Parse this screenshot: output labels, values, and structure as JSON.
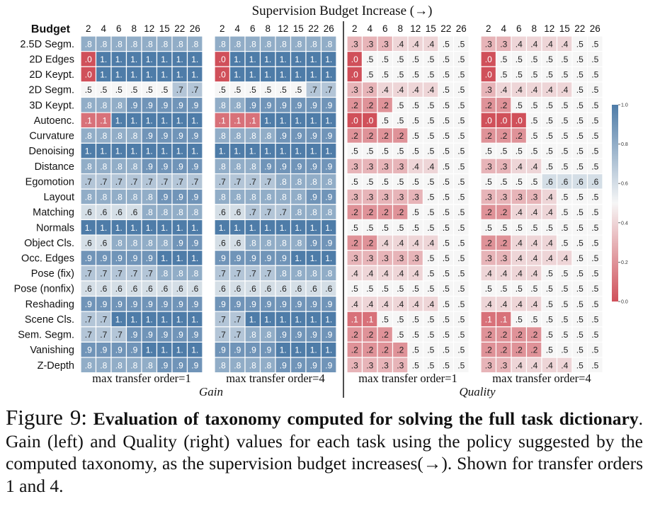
{
  "chart_data": {
    "type": "heatmap",
    "title": "Supervision Budget Increase (→)",
    "row_header": "Budget",
    "rows": [
      "2.5D Segm.",
      "2D Edges",
      "2D Keypt.",
      "2D Segm.",
      "3D Keypt.",
      "Autoenc.",
      "Curvature",
      "Denoising",
      "Distance",
      "Egomotion",
      "Layout",
      "Matching",
      "Normals",
      "Object Cls.",
      "Occ. Edges",
      "Pose (fix)",
      "Pose (nonfix)",
      "Reshading",
      "Scene Cls.",
      "Sem. Segm.",
      "Vanishing",
      "Z-Depth"
    ],
    "budgets": [
      "2",
      "4",
      "6",
      "8",
      "12",
      "15",
      "22",
      "26"
    ],
    "colorbar": {
      "min": 0.0,
      "max": 1.0,
      "ticks": [
        "1.0",
        "0.8",
        "0.6",
        "0.4",
        "0.2",
        "0.0"
      ],
      "low_color": "#d0505a",
      "mid_color": "#f6f6f6",
      "high_color": "#4e7ca8"
    },
    "groups": [
      {
        "name": "Gain",
        "panels": [
          "max transfer order=1",
          "max transfer order=4"
        ]
      },
      {
        "name": "Quality",
        "panels": [
          "max transfer order=1",
          "max transfer order=4"
        ]
      }
    ],
    "panels": [
      {
        "group": "Gain",
        "label": "max transfer order=1",
        "values": [
          [
            0.8,
            0.8,
            0.8,
            0.8,
            0.8,
            0.8,
            0.8,
            0.8
          ],
          [
            0.0,
            1.0,
            1.0,
            1.0,
            1.0,
            1.0,
            1.0,
            1.0
          ],
          [
            0.0,
            1.0,
            1.0,
            1.0,
            1.0,
            1.0,
            1.0,
            1.0
          ],
          [
            0.5,
            0.5,
            0.5,
            0.5,
            0.5,
            0.5,
            0.7,
            0.7
          ],
          [
            0.8,
            0.8,
            0.8,
            0.9,
            0.9,
            0.9,
            0.9,
            0.9
          ],
          [
            0.1,
            0.1,
            1.0,
            1.0,
            1.0,
            1.0,
            1.0,
            1.0
          ],
          [
            0.8,
            0.8,
            0.8,
            0.8,
            0.9,
            0.9,
            0.9,
            0.9
          ],
          [
            1.0,
            1.0,
            1.0,
            1.0,
            1.0,
            1.0,
            1.0,
            1.0
          ],
          [
            0.8,
            0.8,
            0.8,
            0.8,
            0.9,
            0.9,
            0.9,
            0.9
          ],
          [
            0.7,
            0.7,
            0.7,
            0.7,
            0.7,
            0.7,
            0.7,
            0.7
          ],
          [
            0.8,
            0.8,
            0.8,
            0.8,
            0.8,
            0.9,
            0.9,
            0.9
          ],
          [
            0.6,
            0.6,
            0.6,
            0.6,
            0.8,
            0.8,
            0.8,
            0.8
          ],
          [
            1.0,
            1.0,
            1.0,
            1.0,
            1.0,
            1.0,
            1.0,
            1.0
          ],
          [
            0.6,
            0.6,
            0.8,
            0.8,
            0.8,
            0.8,
            0.9,
            0.9
          ],
          [
            0.9,
            0.9,
            0.9,
            0.9,
            0.9,
            1.0,
            1.0,
            1.0
          ],
          [
            0.7,
            0.7,
            0.7,
            0.7,
            0.7,
            0.8,
            0.8,
            0.8
          ],
          [
            0.6,
            0.6,
            0.6,
            0.6,
            0.6,
            0.6,
            0.6,
            0.6
          ],
          [
            0.9,
            0.9,
            0.9,
            0.9,
            0.9,
            0.9,
            0.9,
            0.9
          ],
          [
            0.7,
            0.7,
            1.0,
            1.0,
            1.0,
            1.0,
            1.0,
            1.0
          ],
          [
            0.7,
            0.7,
            0.7,
            0.9,
            0.9,
            0.9,
            0.9,
            0.9
          ],
          [
            0.9,
            0.9,
            0.9,
            0.9,
            1.0,
            1.0,
            1.0,
            1.0
          ],
          [
            0.8,
            0.8,
            0.8,
            0.8,
            0.8,
            0.9,
            0.9,
            0.9
          ]
        ]
      },
      {
        "group": "Gain",
        "label": "max transfer order=4",
        "values": [
          [
            0.8,
            0.8,
            0.8,
            0.8,
            0.8,
            0.8,
            0.8,
            0.8
          ],
          [
            0.0,
            1.0,
            1.0,
            1.0,
            1.0,
            1.0,
            1.0,
            1.0
          ],
          [
            0.0,
            1.0,
            1.0,
            1.0,
            1.0,
            1.0,
            1.0,
            1.0
          ],
          [
            0.5,
            0.5,
            0.5,
            0.5,
            0.5,
            0.5,
            0.7,
            0.7
          ],
          [
            0.8,
            0.8,
            0.9,
            0.9,
            0.9,
            0.9,
            0.9,
            0.9
          ],
          [
            0.1,
            0.1,
            0.1,
            1.0,
            1.0,
            1.0,
            1.0,
            1.0
          ],
          [
            0.8,
            0.8,
            0.8,
            0.8,
            0.9,
            0.9,
            0.9,
            0.9
          ],
          [
            1.0,
            1.0,
            1.0,
            1.0,
            1.0,
            1.0,
            1.0,
            1.0
          ],
          [
            0.8,
            0.8,
            0.8,
            0.9,
            0.9,
            0.9,
            0.9,
            0.9
          ],
          [
            0.7,
            0.7,
            0.7,
            0.7,
            0.8,
            0.8,
            0.8,
            0.8
          ],
          [
            0.8,
            0.8,
            0.8,
            0.8,
            0.8,
            0.8,
            0.9,
            0.9
          ],
          [
            0.6,
            0.6,
            0.7,
            0.7,
            0.7,
            0.8,
            0.8,
            0.8
          ],
          [
            1.0,
            1.0,
            1.0,
            1.0,
            1.0,
            1.0,
            1.0,
            1.0
          ],
          [
            0.6,
            0.6,
            0.8,
            0.8,
            0.8,
            0.8,
            0.9,
            0.9
          ],
          [
            0.9,
            0.9,
            0.9,
            0.9,
            0.9,
            1.0,
            1.0,
            1.0
          ],
          [
            0.7,
            0.7,
            0.7,
            0.7,
            0.8,
            0.8,
            0.8,
            0.8
          ],
          [
            0.6,
            0.6,
            0.6,
            0.6,
            0.6,
            0.6,
            0.6,
            0.6
          ],
          [
            0.9,
            0.9,
            0.9,
            0.9,
            0.9,
            0.9,
            0.9,
            0.9
          ],
          [
            0.7,
            0.7,
            1.0,
            1.0,
            1.0,
            1.0,
            1.0,
            1.0
          ],
          [
            0.7,
            0.7,
            0.8,
            0.8,
            0.9,
            0.9,
            0.9,
            0.9
          ],
          [
            0.9,
            0.9,
            0.9,
            0.9,
            1.0,
            1.0,
            1.0,
            1.0
          ],
          [
            0.8,
            0.8,
            0.8,
            0.8,
            0.9,
            0.9,
            0.9,
            0.9
          ]
        ]
      },
      {
        "group": "Quality",
        "label": "max transfer order=1",
        "values": [
          [
            0.3,
            0.3,
            0.3,
            0.4,
            0.4,
            0.4,
            0.5,
            0.5
          ],
          [
            0.0,
            0.5,
            0.5,
            0.5,
            0.5,
            0.5,
            0.5,
            0.5
          ],
          [
            0.0,
            0.5,
            0.5,
            0.5,
            0.5,
            0.5,
            0.5,
            0.5
          ],
          [
            0.3,
            0.3,
            0.4,
            0.4,
            0.4,
            0.4,
            0.5,
            0.5
          ],
          [
            0.2,
            0.2,
            0.2,
            0.5,
            0.5,
            0.5,
            0.5,
            0.5
          ],
          [
            0.0,
            0.0,
            0.5,
            0.5,
            0.5,
            0.5,
            0.5,
            0.5
          ],
          [
            0.2,
            0.2,
            0.2,
            0.2,
            0.5,
            0.5,
            0.5,
            0.5
          ],
          [
            0.5,
            0.5,
            0.5,
            0.5,
            0.5,
            0.5,
            0.5,
            0.5
          ],
          [
            0.3,
            0.3,
            0.3,
            0.3,
            0.4,
            0.4,
            0.5,
            0.5
          ],
          [
            0.5,
            0.5,
            0.5,
            0.5,
            0.5,
            0.5,
            0.5,
            0.5
          ],
          [
            0.3,
            0.3,
            0.3,
            0.3,
            0.3,
            0.5,
            0.5,
            0.5
          ],
          [
            0.2,
            0.2,
            0.2,
            0.2,
            0.5,
            0.5,
            0.5,
            0.5
          ],
          [
            0.5,
            0.5,
            0.5,
            0.5,
            0.5,
            0.5,
            0.5,
            0.5
          ],
          [
            0.2,
            0.2,
            0.4,
            0.4,
            0.4,
            0.4,
            0.5,
            0.5
          ],
          [
            0.3,
            0.3,
            0.3,
            0.3,
            0.3,
            0.5,
            0.5,
            0.5
          ],
          [
            0.4,
            0.4,
            0.4,
            0.4,
            0.4,
            0.5,
            0.5,
            0.5
          ],
          [
            0.5,
            0.5,
            0.5,
            0.5,
            0.5,
            0.5,
            0.5,
            0.5
          ],
          [
            0.4,
            0.4,
            0.4,
            0.4,
            0.4,
            0.4,
            0.5,
            0.5
          ],
          [
            0.1,
            0.1,
            0.5,
            0.5,
            0.5,
            0.5,
            0.5,
            0.5
          ],
          [
            0.2,
            0.2,
            0.2,
            0.5,
            0.5,
            0.5,
            0.5,
            0.5
          ],
          [
            0.2,
            0.2,
            0.2,
            0.2,
            0.5,
            0.5,
            0.5,
            0.5
          ],
          [
            0.3,
            0.3,
            0.3,
            0.3,
            0.5,
            0.5,
            0.5,
            0.5
          ]
        ]
      },
      {
        "group": "Quality",
        "label": "max transfer order=4",
        "values": [
          [
            0.3,
            0.3,
            0.4,
            0.4,
            0.4,
            0.4,
            0.5,
            0.5
          ],
          [
            0.0,
            0.5,
            0.5,
            0.5,
            0.5,
            0.5,
            0.5,
            0.5
          ],
          [
            0.0,
            0.5,
            0.5,
            0.5,
            0.5,
            0.5,
            0.5,
            0.5
          ],
          [
            0.3,
            0.4,
            0.4,
            0.4,
            0.4,
            0.4,
            0.5,
            0.5
          ],
          [
            0.2,
            0.2,
            0.5,
            0.5,
            0.5,
            0.5,
            0.5,
            0.5
          ],
          [
            0.0,
            0.0,
            0.0,
            0.5,
            0.5,
            0.5,
            0.5,
            0.5
          ],
          [
            0.2,
            0.2,
            0.2,
            0.5,
            0.5,
            0.5,
            0.5,
            0.5
          ],
          [
            0.5,
            0.5,
            0.5,
            0.5,
            0.5,
            0.5,
            0.5,
            0.5
          ],
          [
            0.3,
            0.3,
            0.4,
            0.4,
            0.5,
            0.5,
            0.5,
            0.5
          ],
          [
            0.5,
            0.5,
            0.5,
            0.5,
            0.6,
            0.6,
            0.6,
            0.6
          ],
          [
            0.3,
            0.3,
            0.3,
            0.3,
            0.4,
            0.5,
            0.5,
            0.5
          ],
          [
            0.2,
            0.2,
            0.4,
            0.4,
            0.4,
            0.5,
            0.5,
            0.5
          ],
          [
            0.5,
            0.5,
            0.5,
            0.5,
            0.5,
            0.5,
            0.5,
            0.5
          ],
          [
            0.2,
            0.2,
            0.4,
            0.4,
            0.4,
            0.5,
            0.5,
            0.5
          ],
          [
            0.3,
            0.3,
            0.4,
            0.4,
            0.4,
            0.4,
            0.5,
            0.5
          ],
          [
            0.4,
            0.4,
            0.4,
            0.4,
            0.5,
            0.5,
            0.5,
            0.5
          ],
          [
            0.5,
            0.5,
            0.5,
            0.5,
            0.5,
            0.5,
            0.5,
            0.5
          ],
          [
            0.4,
            0.4,
            0.4,
            0.4,
            0.5,
            0.5,
            0.5,
            0.5
          ],
          [
            0.1,
            0.1,
            0.5,
            0.5,
            0.5,
            0.5,
            0.5,
            0.5
          ],
          [
            0.2,
            0.2,
            0.2,
            0.2,
            0.5,
            0.5,
            0.5,
            0.5
          ],
          [
            0.2,
            0.2,
            0.2,
            0.2,
            0.5,
            0.5,
            0.5,
            0.5
          ],
          [
            0.3,
            0.3,
            0.4,
            0.4,
            0.4,
            0.4,
            0.5,
            0.5
          ]
        ]
      }
    ]
  },
  "caption": {
    "label": "Figure 9:",
    "bold_text": "Evaluation of taxonomy computed for solving the full task dictionary",
    "body": ". Gain (left) and Quality (right) values for each task using the policy suggested by the computed taxonomy, as the supervision budget increases(→). Shown for transfer orders 1 and 4."
  }
}
